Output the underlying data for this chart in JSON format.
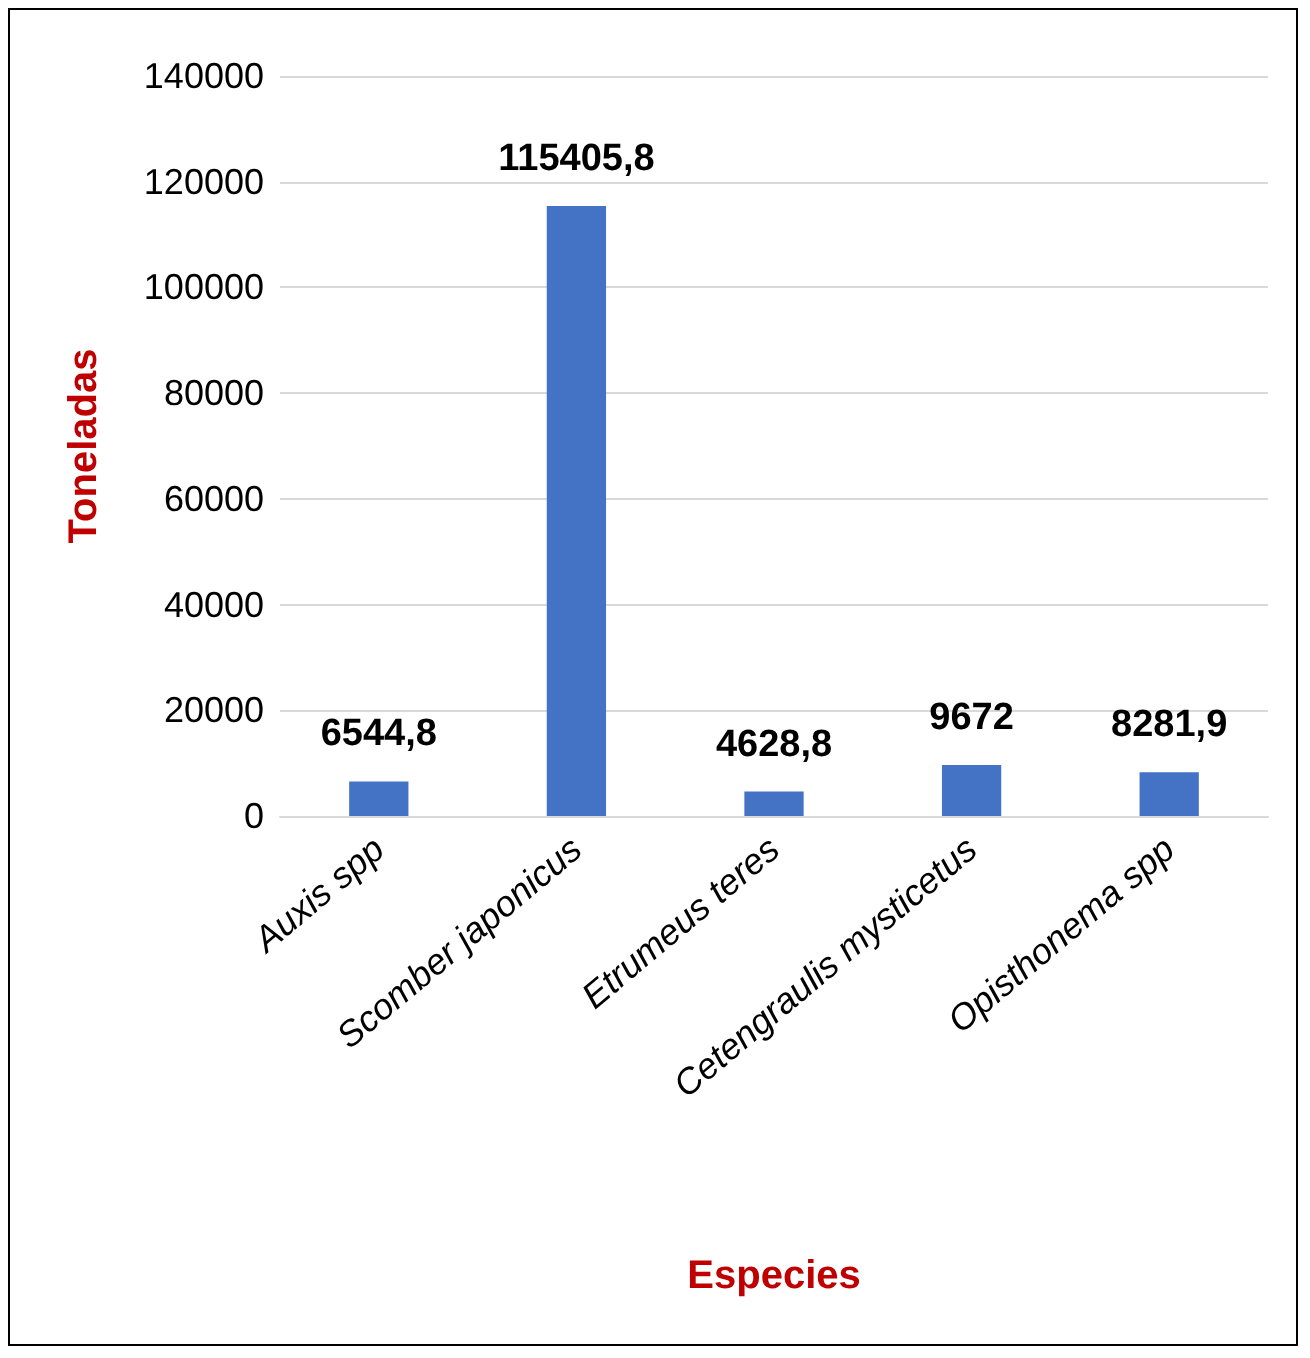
{
  "chart_data": {
    "type": "bar",
    "xlabel": "Especies",
    "ylabel": "Toneladas",
    "categories": [
      "Auxis spp",
      "Scomber japonicus",
      "Etrumeus teres",
      "Cetengraulis mysticetus",
      "Opisthonema spp"
    ],
    "values": [
      6544.8,
      115405.8,
      4628.8,
      9672,
      8281.9
    ],
    "value_labels": [
      "6544,8",
      "115405,8",
      "4628,8",
      "9672",
      "8281,9"
    ],
    "color": "#4472c4",
    "ylim": [
      0,
      140000
    ],
    "yticks": [
      0,
      20000,
      40000,
      60000,
      80000,
      100000,
      120000,
      140000
    ],
    "grid": "y"
  }
}
